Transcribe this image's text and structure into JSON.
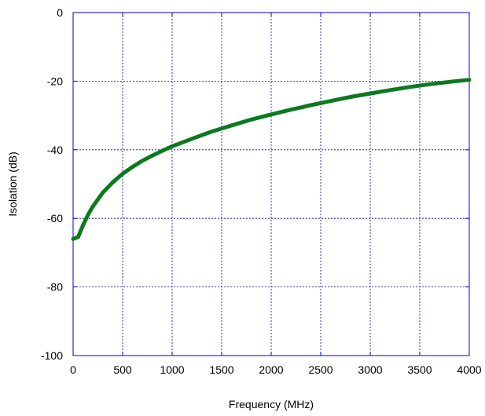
{
  "chart_data": {
    "type": "line",
    "title": "",
    "xlabel": "Frequency (MHz)",
    "ylabel": "Isolation (dB)",
    "xlim": [
      0,
      4000
    ],
    "ylim": [
      -100,
      0
    ],
    "xticks": [
      0,
      500,
      1000,
      1500,
      2000,
      2500,
      3000,
      3500,
      4000
    ],
    "yticks": [
      0,
      -20,
      -40,
      -60,
      -80,
      -100
    ],
    "grid": true,
    "grid_color": "#0000cc",
    "axis_color": "#0000cc",
    "series": [
      {
        "color": "#0b7a1f",
        "x": [
          0,
          50,
          100,
          150,
          200,
          300,
          400,
          500,
          600,
          700,
          800,
          900,
          1000,
          1200,
          1400,
          1600,
          1800,
          2000,
          2200,
          2400,
          2600,
          2800,
          3000,
          3200,
          3400,
          3600,
          3800,
          4000
        ],
        "y": [
          -66,
          -65.5,
          -62,
          -59,
          -56.5,
          -52.5,
          -49.5,
          -47,
          -45,
          -43.2,
          -41.7,
          -40.3,
          -39,
          -36.8,
          -34.7,
          -32.9,
          -31.2,
          -29.7,
          -28.3,
          -27,
          -25.8,
          -24.6,
          -23.6,
          -22.6,
          -21.7,
          -20.9,
          -20.2,
          -19.6
        ]
      }
    ]
  }
}
